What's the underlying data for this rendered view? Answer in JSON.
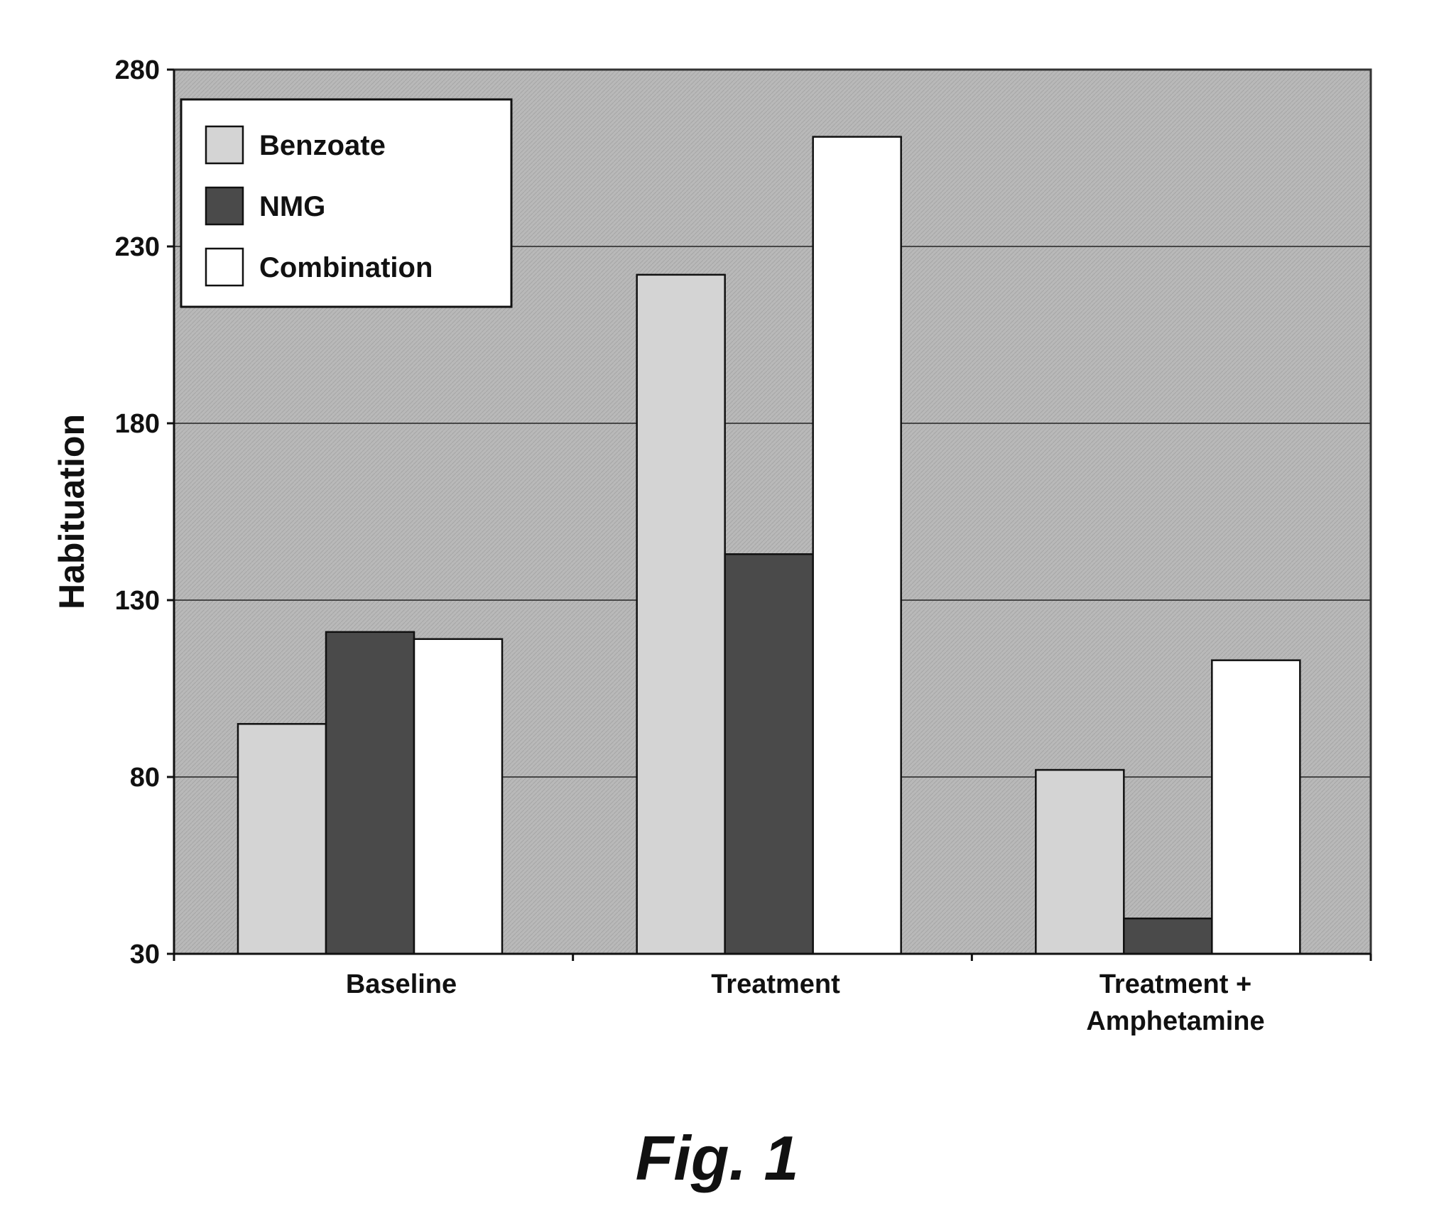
{
  "chart_data": {
    "type": "bar",
    "ylabel": "Habituation",
    "xlabel": "",
    "ylim": [
      30,
      280
    ],
    "yticks": [
      30,
      80,
      130,
      180,
      230,
      280
    ],
    "categories": [
      "Baseline",
      "Treatment",
      "Treatment +\nAmphetamine"
    ],
    "series": [
      {
        "name": "Benzoate",
        "color": "#d4d4d4",
        "values": [
          95,
          222,
          82
        ]
      },
      {
        "name": "NMG",
        "color": "#4a4a4a",
        "values": [
          121,
          143,
          40
        ]
      },
      {
        "name": "Combination",
        "color": "#ffffff",
        "values": [
          119,
          261,
          113
        ]
      }
    ],
    "grid": true,
    "legend": "top-left",
    "plot_background": "#b9b9b9"
  },
  "caption": "Fig. 1"
}
